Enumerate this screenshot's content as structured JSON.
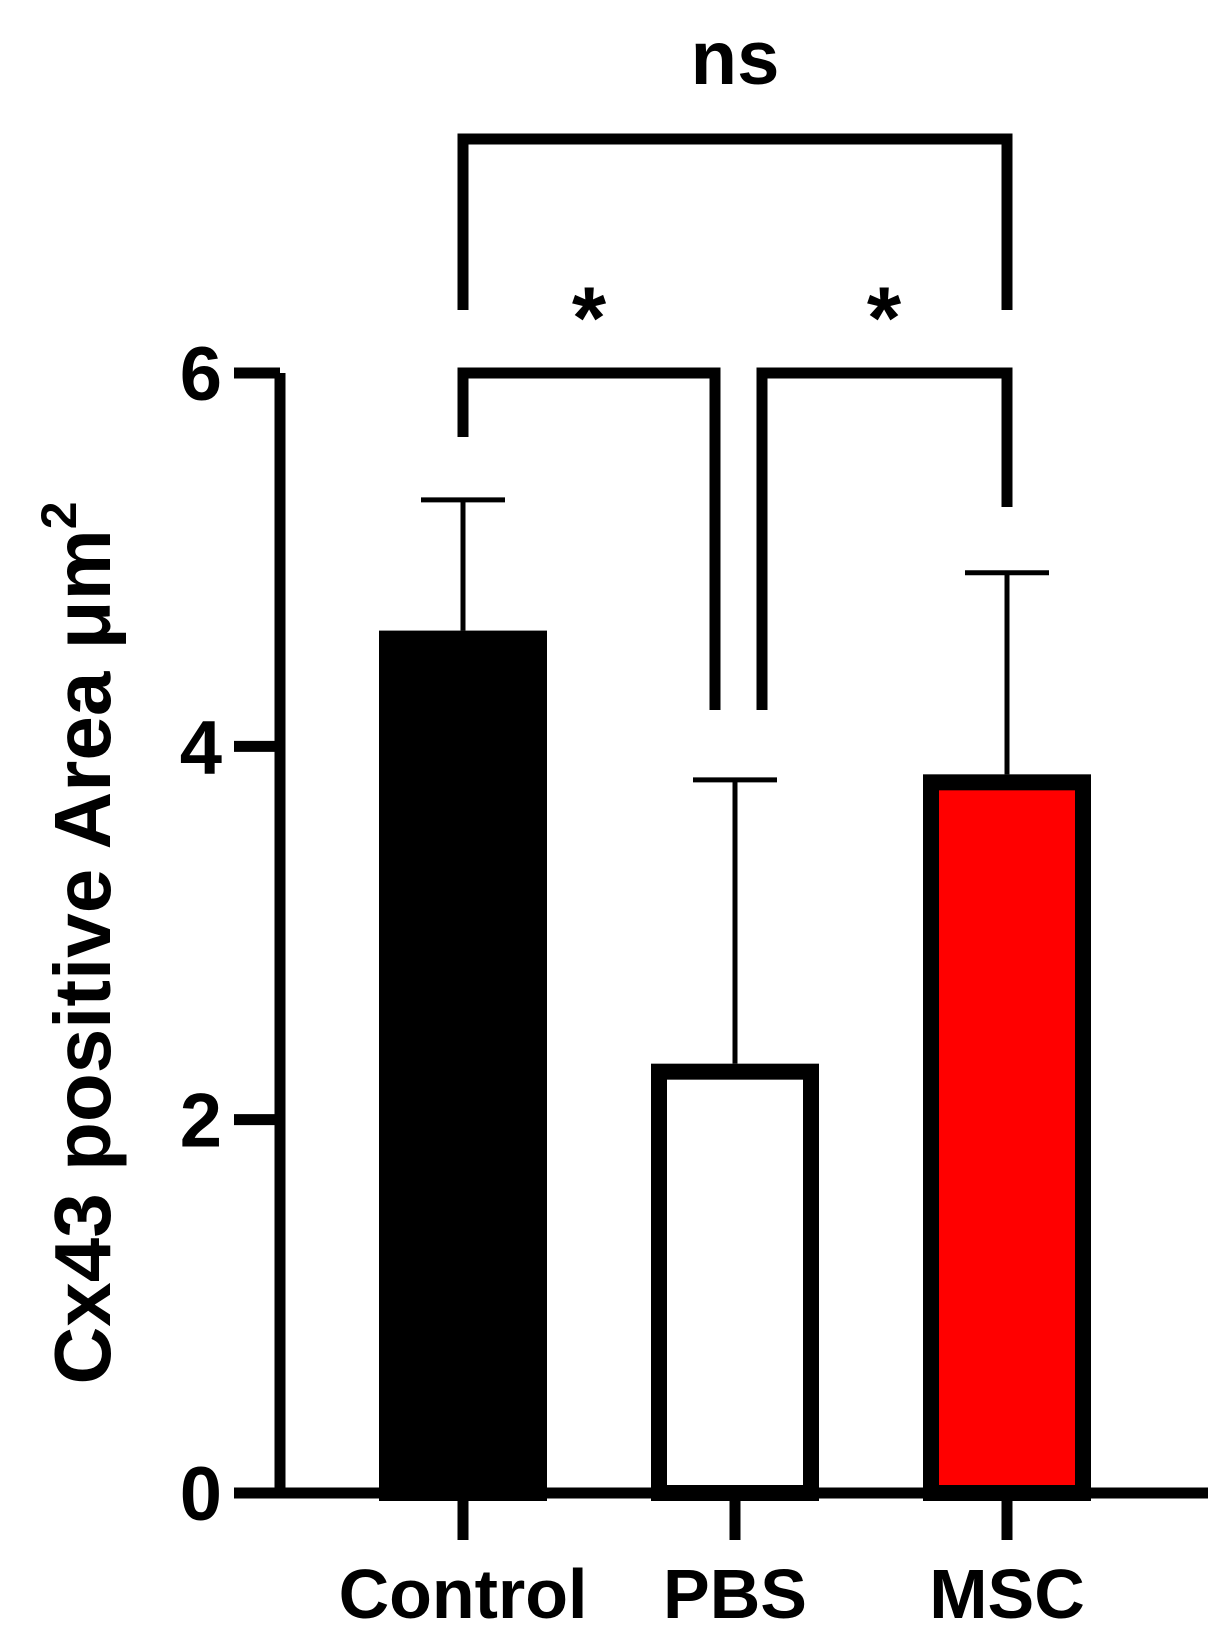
{
  "chart_data": {
    "type": "bar",
    "categories": [
      "Control",
      "PBS",
      "MSC"
    ],
    "values": [
      4.62,
      2.3,
      3.85
    ],
    "errors": [
      0.7,
      1.52,
      1.08
    ],
    "ylabel": "Cx43 positive Area μm",
    "ylabel_superscript": "2",
    "ylim": [
      0,
      6
    ],
    "yticks": [
      {
        "value": 0,
        "label": "0"
      },
      {
        "value": 2,
        "label": "2"
      },
      {
        "value": 4,
        "label": "4"
      },
      {
        "value": 6,
        "label": "6"
      }
    ],
    "bar_styles": [
      {
        "fill": "#000000",
        "stroke": "#000000"
      },
      {
        "fill": "#ffffff",
        "stroke": "#000000"
      },
      {
        "fill": "#ff0000",
        "stroke": "#000000"
      }
    ],
    "grid": false,
    "significance": [
      {
        "from": 0,
        "to": 1,
        "label": "*"
      },
      {
        "from": 1,
        "to": 2,
        "label": "*"
      },
      {
        "from": 0,
        "to": 2,
        "label": "ns"
      }
    ]
  }
}
